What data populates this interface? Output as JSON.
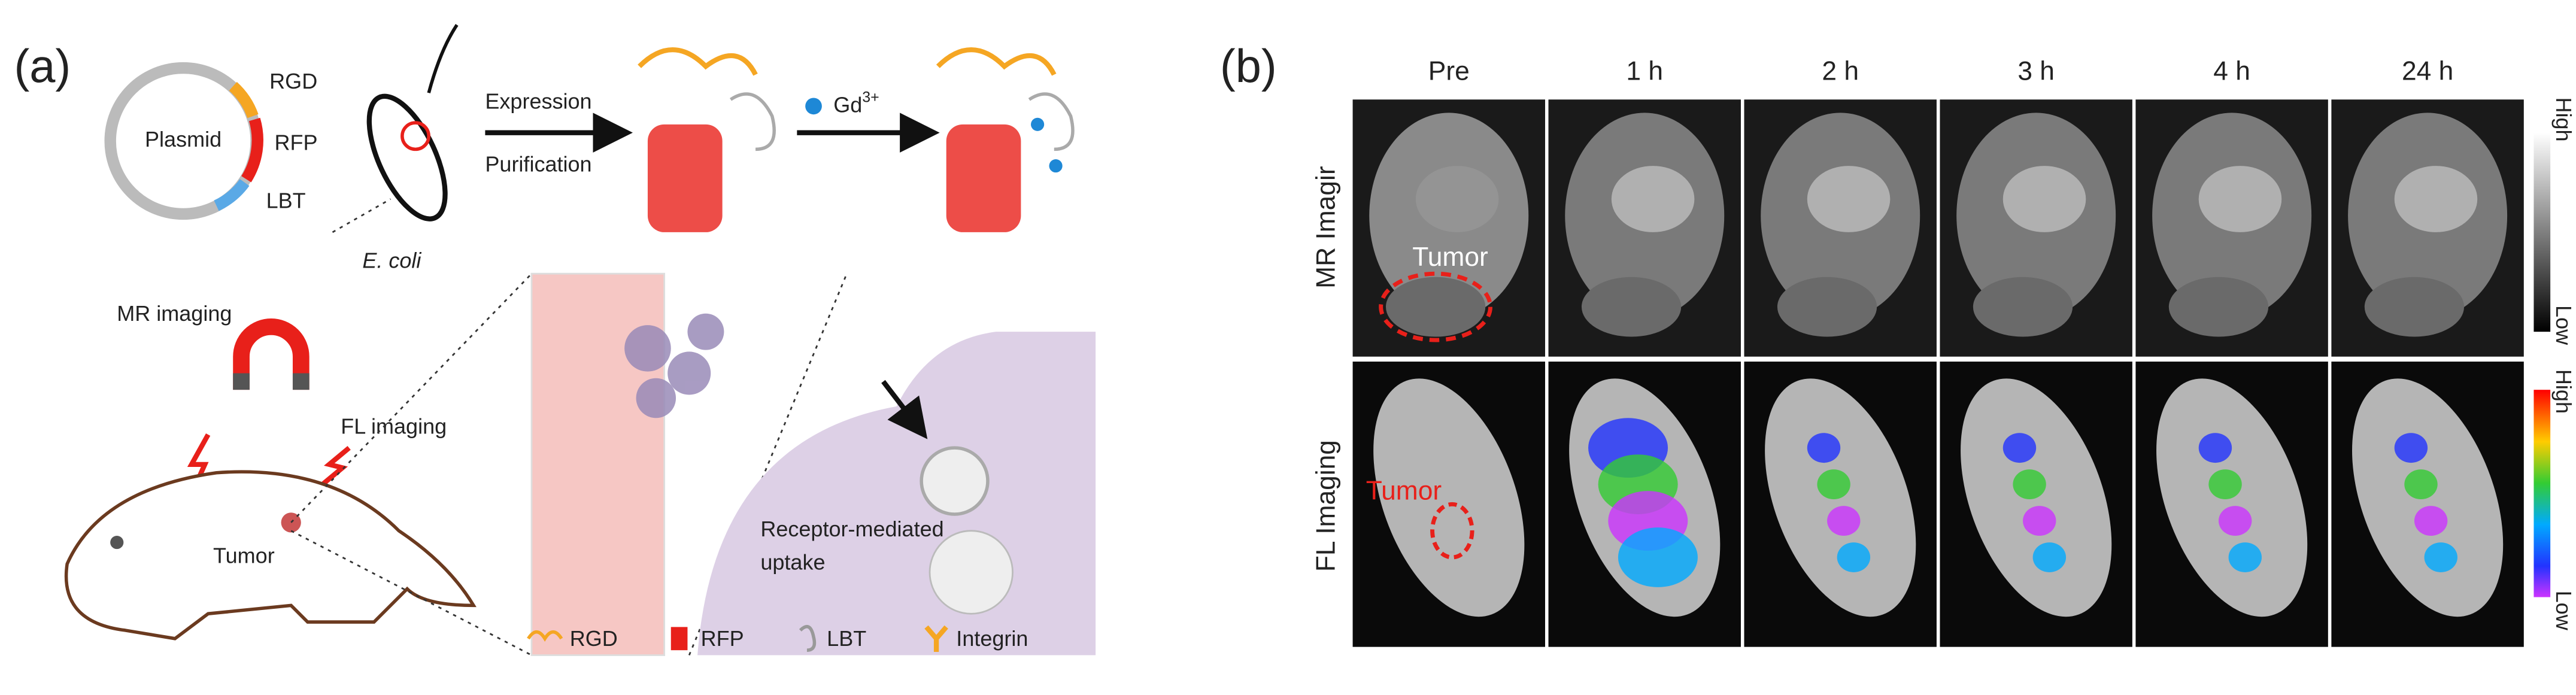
{
  "panel_a": {
    "label": "(a)",
    "plasmid": "Plasmid",
    "plasmid_parts": [
      "RGD",
      "RFP",
      "LBT"
    ],
    "host": "E. coli",
    "steps": [
      "Expression",
      "Purification"
    ],
    "gd": {
      "symbol": "Gd",
      "charge": "3+"
    },
    "mr_imaging": "MR imaging",
    "fl_imaging": "FL imaging",
    "tumor": "Tumor",
    "uptake": [
      "Receptor-mediated",
      "uptake"
    ],
    "legend": [
      "RGD",
      "RFP",
      "LBT",
      "Integrin"
    ]
  },
  "panel_b": {
    "label": "(b)",
    "timepoints": [
      "Pre",
      "1 h",
      "2 h",
      "3 h",
      "4 h",
      "24 h"
    ],
    "rows": [
      "MR Imagir",
      "FL Imaging"
    ],
    "tumor_labels": [
      "Tumor",
      "Tumor"
    ],
    "mr_scale": [
      "High",
      "Low"
    ],
    "fl_scale": [
      "High",
      "Low"
    ]
  }
}
